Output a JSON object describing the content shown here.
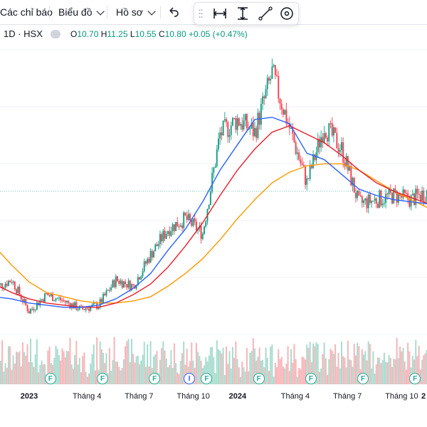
{
  "toolbar": {
    "indicators_label": "Các chỉ báo",
    "chart_type_label": "Biểu đồ",
    "profile_label": "Hồ sơ",
    "undo_icon": "undo-icon",
    "tools": [
      "grip-handle-icon",
      "date-range-icon",
      "price-range-icon",
      "trend-line-icon",
      "circle-target-icon"
    ]
  },
  "legend": {
    "symbol": "1D · HSX",
    "open_key": "O",
    "open": "10.70",
    "high_key": "H",
    "high": "11.25",
    "low_key": "L",
    "low": "10.55",
    "close_key": "C",
    "close": "10.80",
    "change": "+0.05 (+0.47%)"
  },
  "colors": {
    "up": "#089981",
    "down": "#f23645",
    "ma_short": "#2962ff",
    "ma_mid": "#e91e2c",
    "ma_long": "#ff9800",
    "volume_up": "#a8dccf",
    "volume_down": "#f7b4b8"
  },
  "events": [
    {
      "kind": "F",
      "date": "2023-01"
    },
    {
      "kind": "F",
      "date": "2023-04"
    },
    {
      "kind": "F",
      "date": "2023-07"
    },
    {
      "kind": "I",
      "date": "2023-09"
    },
    {
      "kind": "F",
      "date": "2023-10"
    },
    {
      "kind": "F",
      "date": "2024-01"
    },
    {
      "kind": "F",
      "date": "2024-04"
    },
    {
      "kind": "F",
      "date": "2024-07"
    },
    {
      "kind": "F",
      "date": "2024-10"
    }
  ],
  "xaxis": {
    "ticks": [
      {
        "label": "2023",
        "bold": true
      },
      {
        "label": "Tháng 4",
        "bold": false
      },
      {
        "label": "Tháng 7",
        "bold": false
      },
      {
        "label": "Tháng 10",
        "bold": false
      },
      {
        "label": "2024",
        "bold": true
      },
      {
        "label": "Tháng 4",
        "bold": false
      },
      {
        "label": "Tháng 7",
        "bold": false
      },
      {
        "label": "Tháng 10",
        "bold": false
      },
      {
        "label": "2",
        "bold": true
      }
    ]
  },
  "chart_data": {
    "type": "candlestick",
    "x": [
      "2022-11",
      "2022-12",
      "2023-01",
      "2023-02",
      "2023-03",
      "2023-04",
      "2023-05",
      "2023-06",
      "2023-07",
      "2023-08",
      "2023-09",
      "2023-10",
      "2023-11",
      "2023-12",
      "2024-01",
      "2024-02",
      "2024-03",
      "2024-04",
      "2024-05",
      "2024-06",
      "2024-07",
      "2024-08",
      "2024-09",
      "2024-10",
      "2024-11",
      "2024-12"
    ],
    "close": [
      6.2,
      6.6,
      5.1,
      5.9,
      5.6,
      5.2,
      5.4,
      6.6,
      6.3,
      7.8,
      9.0,
      9.5,
      8.8,
      13.5,
      14.2,
      13.6,
      16.4,
      13.8,
      11.2,
      13.9,
      12.8,
      10.2,
      10.4,
      10.6,
      10.4,
      10.8
    ],
    "ma_short": [
      5.8,
      5.7,
      5.5,
      5.4,
      5.3,
      5.3,
      5.4,
      5.7,
      6.2,
      6.9,
      8.0,
      9.0,
      10.3,
      11.8,
      13.0,
      14.2,
      14.3,
      14.0,
      12.6,
      12.3,
      11.6,
      10.9,
      10.6,
      10.4,
      10.3,
      10.2
    ],
    "ma_mid": [
      6.4,
      6.0,
      5.7,
      5.5,
      5.4,
      5.3,
      5.3,
      5.5,
      5.9,
      6.4,
      7.2,
      8.2,
      9.3,
      10.6,
      11.8,
      12.8,
      13.6,
      13.9,
      13.5,
      13.1,
      12.5,
      11.8,
      11.2,
      10.8,
      10.5,
      10.2
    ],
    "ma_long": [
      8.2,
      7.3,
      6.5,
      6.0,
      5.8,
      5.6,
      5.5,
      5.5,
      5.6,
      5.8,
      6.3,
      6.9,
      7.6,
      8.5,
      9.5,
      10.4,
      11.2,
      11.7,
      12.0,
      12.1,
      12.1,
      11.8,
      11.3,
      10.8,
      10.4,
      10.0
    ],
    "ylim": [
      3.0,
      17.5
    ],
    "last_price": 10.8,
    "volume_max": 100
  }
}
